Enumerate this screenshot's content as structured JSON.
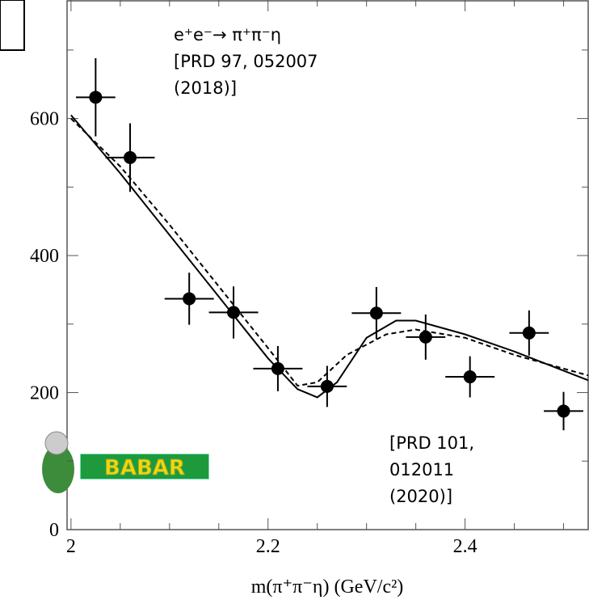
{
  "chart_data": {
    "type": "errorbar",
    "x_label": "m(π⁺π⁻η) (GeV/c²)",
    "x": [
      2.025,
      2.06,
      2.12,
      2.165,
      2.21,
      2.26,
      2.31,
      2.36,
      2.405,
      2.465,
      2.5
    ],
    "values": [
      631,
      543,
      337,
      317,
      235,
      209,
      316,
      281,
      223,
      287,
      173
    ],
    "errors": [
      57,
      50,
      38,
      38,
      33,
      30,
      38,
      33,
      30,
      33,
      28
    ],
    "x_errors": [
      0.02,
      0.025,
      0.025,
      0.025,
      0.025,
      0.02,
      0.025,
      0.02,
      0.025,
      0.02,
      0.02
    ],
    "color": "#000000",
    "fits": [
      {
        "dash": false,
        "x": [
          2.0,
          2.05,
          2.1,
          2.15,
          2.2,
          2.23,
          2.25,
          2.27,
          2.3,
          2.33,
          2.35,
          2.4,
          2.45,
          2.5,
          2.525
        ],
        "values": [
          605,
          520,
          430,
          340,
          250,
          205,
          193,
          215,
          280,
          305,
          305,
          285,
          260,
          232,
          218
        ]
      },
      {
        "dash": true,
        "x": [
          2.0,
          2.05,
          2.1,
          2.15,
          2.2,
          2.23,
          2.25,
          2.28,
          2.32,
          2.35,
          2.4,
          2.45,
          2.5,
          2.525
        ],
        "values": [
          600,
          530,
          445,
          355,
          265,
          210,
          215,
          255,
          285,
          292,
          280,
          255,
          235,
          225
        ]
      }
    ],
    "xlim": [
      1.996,
      2.525
    ],
    "ylim": [
      0,
      773
    ],
    "xticks": [
      {
        "value": 2,
        "label": "2"
      },
      2.2,
      2.4
    ],
    "yticks": [
      0,
      200,
      400,
      600
    ],
    "annotations": {
      "top": [
        "e⁺e⁻→ π⁺π⁻η",
        " [PRD 97, 052007",
        "(2018)]"
      ],
      "bottom": [
        "[PRD 101,",
        "012011",
        "(2020)]"
      ]
    },
    "logo": "BABAR"
  }
}
